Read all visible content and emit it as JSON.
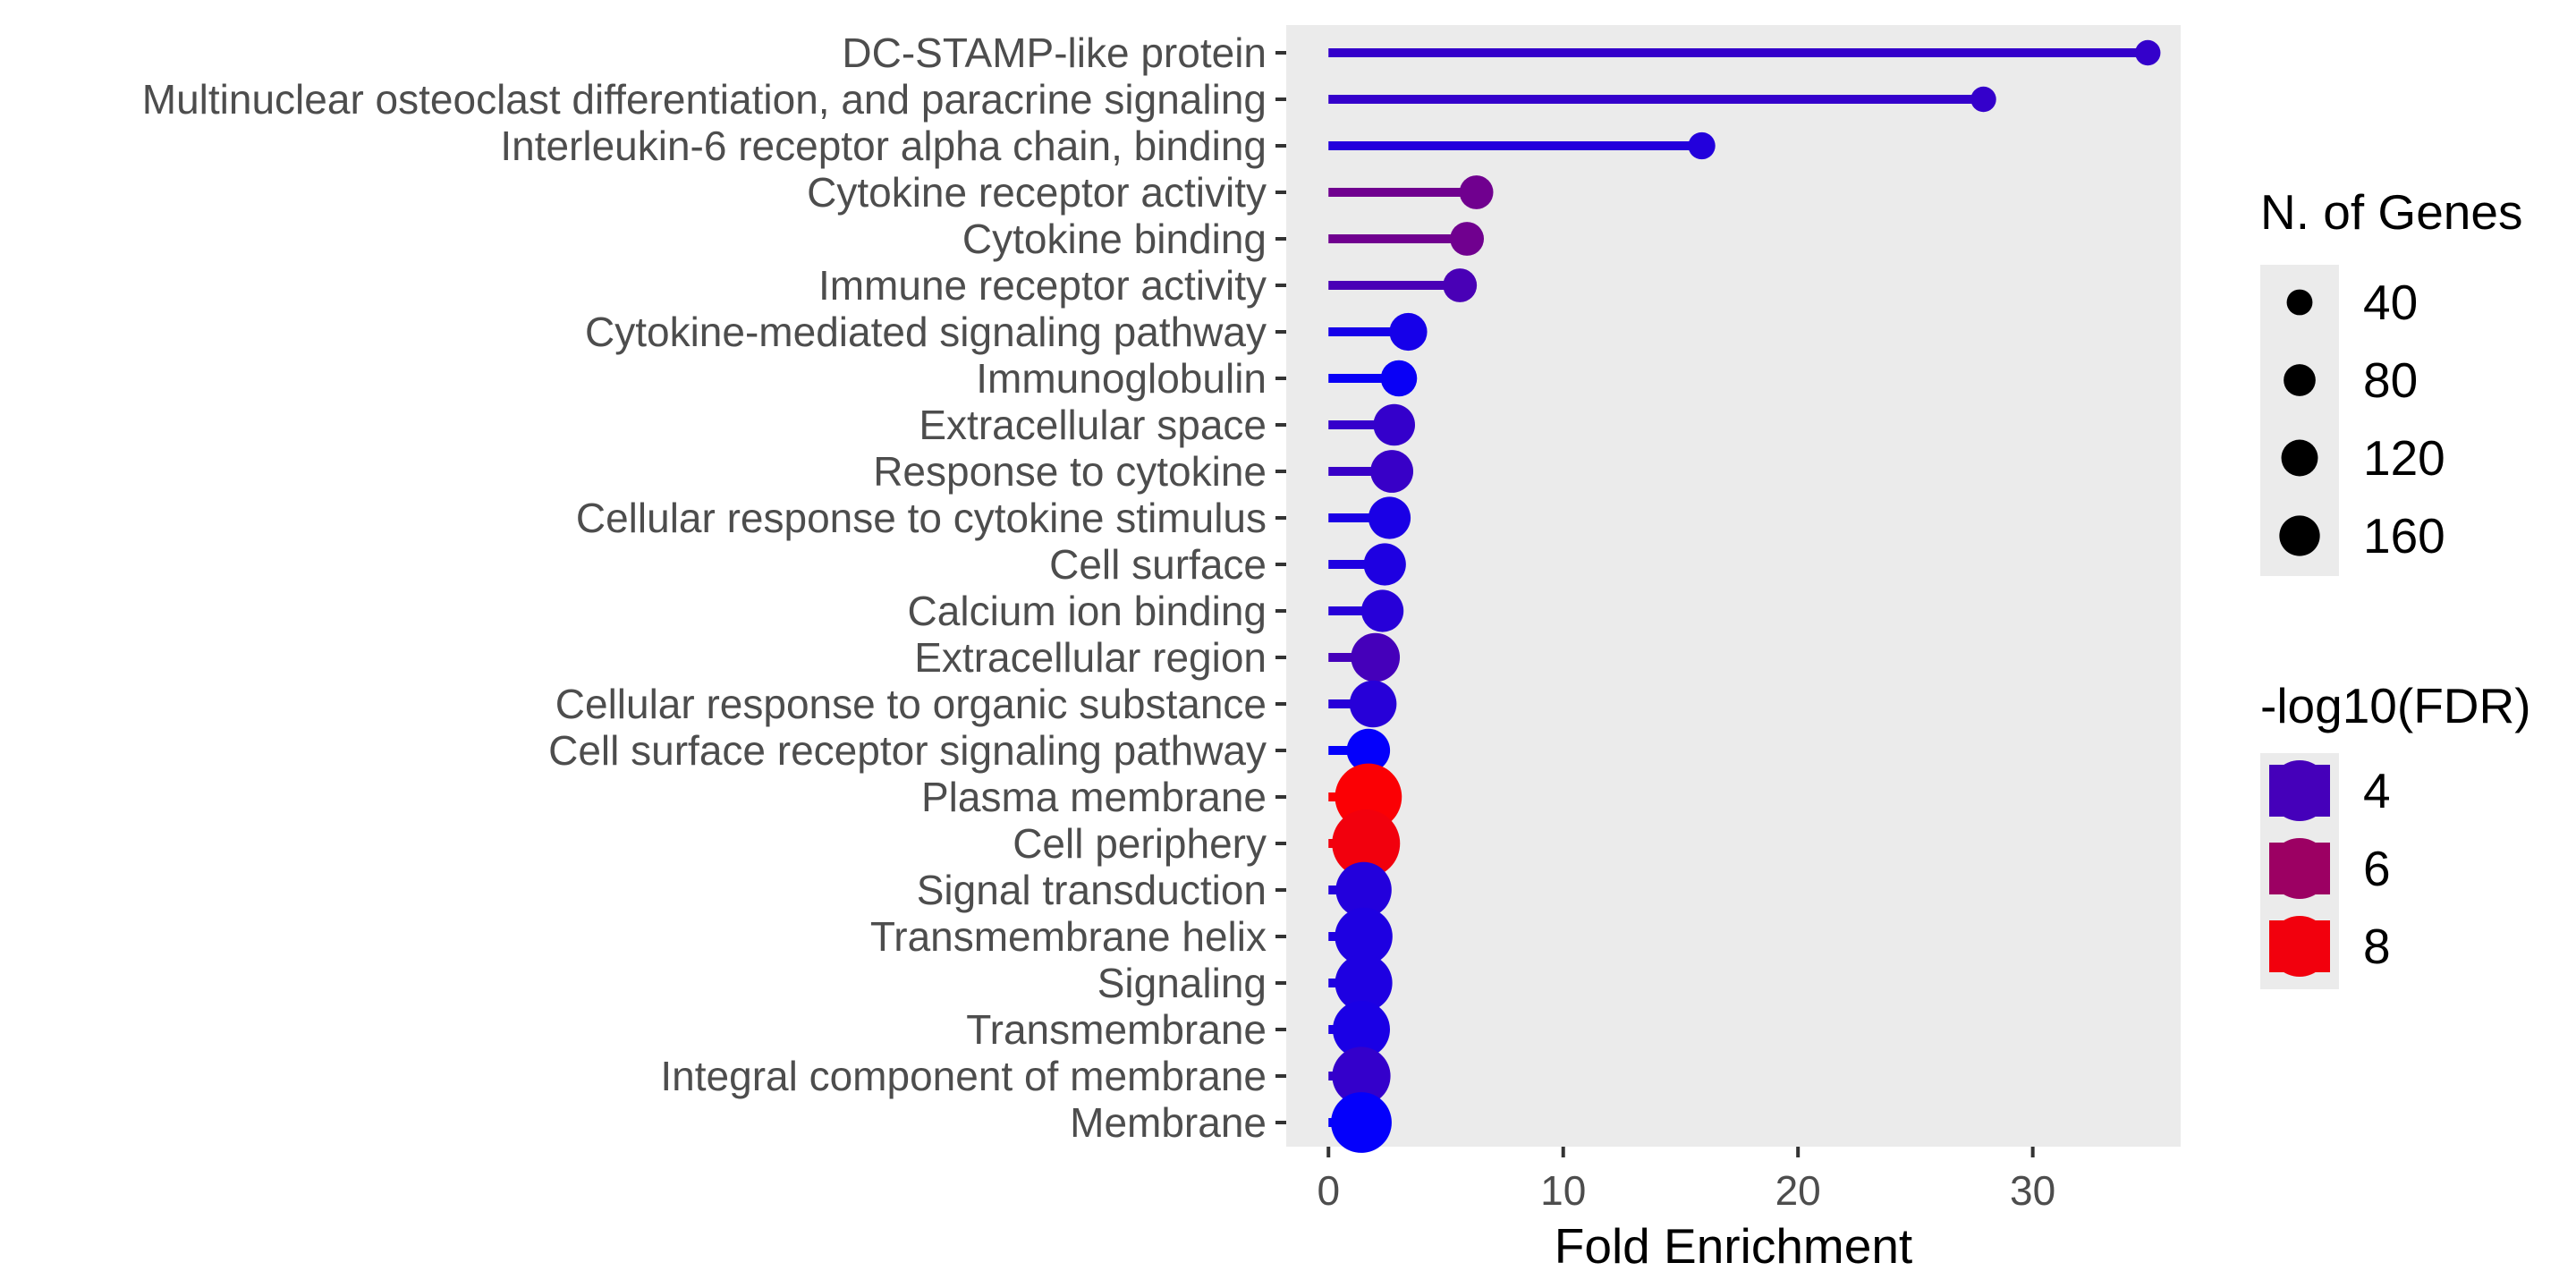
{
  "chart_data": {
    "type": "lollipop",
    "xlabel": "Fold Enrichment",
    "xlim": [
      -1.8,
      36.3
    ],
    "xticks": [
      0,
      10,
      20,
      30
    ],
    "panel_background": "#ebebeb",
    "grid": false,
    "categories": [
      "DC-STAMP-like protein",
      "Multinuclear osteoclast differentiation, and paracrine signaling",
      "Interleukin-6 receptor alpha chain, binding",
      "Cytokine receptor activity",
      "Cytokine binding",
      "Immune receptor activity",
      "Cytokine-mediated signaling pathway",
      "Immunoglobulin",
      "Extracellular space",
      "Response to cytokine",
      "Cellular response to cytokine stimulus",
      "Cell surface",
      "Calcium ion binding",
      "Extracellular region",
      "Cellular response to organic substance",
      "Cell surface receptor signaling pathway",
      "Plasma membrane",
      "Cell periphery",
      "Signal transduction",
      "Transmembrane helix",
      "Signaling",
      "Transmembrane",
      "Integral component of membrane",
      "Membrane"
    ],
    "fold_enrichment": [
      34.9,
      27.9,
      15.9,
      6.3,
      5.9,
      5.6,
      3.4,
      3.0,
      2.8,
      2.7,
      2.6,
      2.4,
      2.3,
      2.0,
      1.9,
      1.7,
      1.7,
      1.6,
      1.5,
      1.5,
      1.5,
      1.4,
      1.4,
      1.4
    ],
    "n_genes": [
      4,
      4,
      6,
      18,
      18,
      18,
      28,
      24,
      40,
      44,
      42,
      42,
      42,
      68,
      60,
      46,
      170,
      178,
      102,
      112,
      110,
      110,
      116,
      130
    ],
    "neg_log10_fdr": [
      3.6,
      3.6,
      3.2,
      5.0,
      5.0,
      4.1,
      2.9,
      2.6,
      3.6,
      3.7,
      3.0,
      3.1,
      3.3,
      4.0,
      3.3,
      2.5,
      8.2,
      8.0,
      3.2,
      3.1,
      3.1,
      3.0,
      3.6,
      2.5
    ],
    "legend_size": {
      "title": "N. of Genes",
      "position": "right",
      "values": [
        40,
        80,
        120,
        160
      ]
    },
    "legend_color": {
      "title": "-log10(FDR)",
      "position": "right",
      "values": [
        4,
        6,
        8
      ],
      "gradient": {
        "low_value": 2.4,
        "low_color": "#0000ff",
        "high_value": 8.3,
        "high_color": "#ff0000"
      }
    }
  }
}
